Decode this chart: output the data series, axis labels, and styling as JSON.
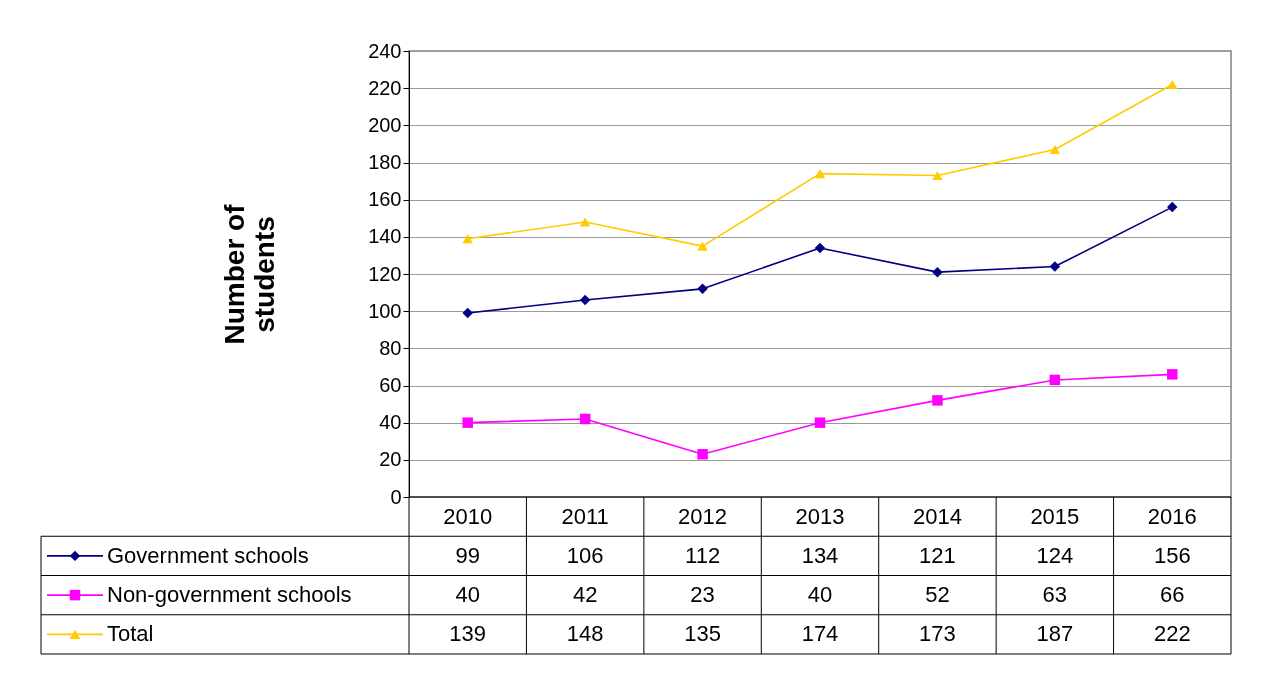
{
  "chart_data": {
    "type": "line",
    "ylabel": "Number of students",
    "categories": [
      "2010",
      "2011",
      "2012",
      "2013",
      "2014",
      "2015",
      "2016"
    ],
    "series": [
      {
        "name": "Government schools",
        "color": "#000080",
        "marker": "diamond",
        "values": [
          99,
          106,
          112,
          134,
          121,
          124,
          156
        ]
      },
      {
        "name": "Non-government schools",
        "color": "#ff00ff",
        "marker": "square",
        "values": [
          40,
          42,
          23,
          40,
          52,
          63,
          66
        ]
      },
      {
        "name": "Total",
        "color": "#ffcc00",
        "marker": "triangle",
        "values": [
          139,
          148,
          135,
          174,
          173,
          187,
          222
        ]
      }
    ],
    "ylim": [
      0,
      240
    ],
    "yticks": [
      0,
      20,
      40,
      60,
      80,
      100,
      120,
      140,
      160,
      180,
      200,
      220,
      240
    ],
    "grid": "y",
    "legend": "bottom",
    "data_labels": true
  }
}
